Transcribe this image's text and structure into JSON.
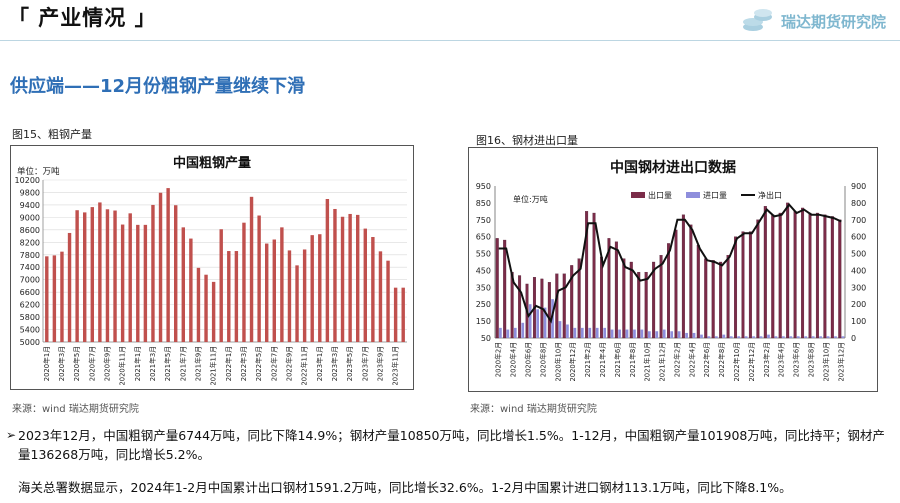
{
  "header": {
    "title": "「 产业情况 」",
    "logo_text": "瑞达期货研究院"
  },
  "subtitle": "供应端——12月份粗钢产量继续下滑",
  "figures": {
    "fig15_label": "图15、粗钢产量",
    "fig16_label": "图16、钢材进出口量",
    "source15": "来源：wind  瑞达期货研究院",
    "source16": "来源：wind  瑞达期货研究院"
  },
  "paragraphs": {
    "p1": "2023年12月，中国粗钢产量6744万吨，同比下降14.9%；钢材产量10850万吨，同比增长1.5%。1-12月，中国粗钢产量101908万吨，同比持平；钢材产量136268万吨，同比增长5.2%。",
    "p2": "海关总署数据显示，2024年1-2月中国累计出口钢材1591.2万吨，同比增长32.6%。1-2月中国累计进口钢材113.1万吨，同比下降8.1%。"
  },
  "colors": {
    "bar_red": "#c0504d",
    "export_bar": "#7b2c49",
    "import_bar": "#8e8edc",
    "net_line": "#111111",
    "subtitle_blue": "#2f6fb6"
  },
  "chart_data": [
    {
      "type": "bar",
      "title": "中国粗钢产量",
      "unit_label": "单位：万吨",
      "ylim": [
        5000,
        10200
      ],
      "yticks": [
        5000,
        5400,
        5800,
        6200,
        6600,
        7000,
        7400,
        7800,
        8200,
        8600,
        9000,
        9400,
        9800,
        10200
      ],
      "categories": [
        "2020年1月",
        "2020年2月",
        "2020年3月",
        "2020年4月",
        "2020年5月",
        "2020年6月",
        "2020年7月",
        "2020年8月",
        "2020年9月",
        "2020年10月",
        "2020年11月",
        "2020年12月",
        "2021年1月",
        "2021年2月",
        "2021年3月",
        "2021年4月",
        "2021年5月",
        "2021年6月",
        "2021年7月",
        "2021年8月",
        "2021年9月",
        "2021年10月",
        "2021年11月",
        "2021年12月",
        "2022年1月",
        "2022年2月",
        "2022年3月",
        "2022年4月",
        "2022年5月",
        "2022年6月",
        "2022年7月",
        "2022年8月",
        "2022年9月",
        "2022年10月",
        "2022年11月",
        "2022年12月",
        "2023年1月",
        "2023年2月",
        "2023年3月",
        "2023年4月",
        "2023年5月",
        "2023年6月",
        "2023年7月",
        "2023年8月",
        "2023年9月",
        "2023年10月",
        "2023年11月",
        "2023年12月"
      ],
      "tick_labels": [
        "2020年1月",
        "2020年3月",
        "2020年5月",
        "2020年7月",
        "2020年9月",
        "2020年11月",
        "2021年1月",
        "2021年3月",
        "2021年5月",
        "2021年7月",
        "2021年9月",
        "2021年11月",
        "2022年1月",
        "2022年3月",
        "2022年5月",
        "2022年7月",
        "2022年9月",
        "2022年11月",
        "2023年1月",
        "2023年3月",
        "2023年5月",
        "2023年7月",
        "2023年9月",
        "2023年11月"
      ],
      "values": [
        7750,
        7780,
        7900,
        8500,
        9230,
        9160,
        9330,
        9480,
        9260,
        9220,
        8770,
        9130,
        8760,
        8760,
        9400,
        9790,
        9940,
        9390,
        8680,
        8320,
        7380,
        7160,
        6930,
        8620,
        7920,
        7920,
        8830,
        9660,
        9060,
        8160,
        8290,
        8680,
        7940,
        7460,
        7970,
        8430,
        8460,
        9590,
        9270,
        9020,
        9110,
        9080,
        8640,
        8370,
        7910,
        7610,
        6744,
        6744
      ]
    },
    {
      "type": "bar+line",
      "title": "中国钢材进出口数据",
      "unit_label": "单位:万吨",
      "left_ylim": [
        50,
        950
      ],
      "left_yticks": [
        50,
        150,
        250,
        350,
        450,
        550,
        650,
        750,
        850,
        950
      ],
      "right_ylim": [
        0,
        900
      ],
      "right_yticks": [
        0,
        100,
        200,
        300,
        400,
        500,
        600,
        700,
        800,
        900
      ],
      "legend": [
        "出口量",
        "进口量",
        "净出口"
      ],
      "categories": [
        "2020年2月",
        "2020年3月",
        "2020年4月",
        "2020年5月",
        "2020年6月",
        "2020年7月",
        "2020年8月",
        "2020年9月",
        "2020年10月",
        "2020年11月",
        "2020年12月",
        "2021年1月",
        "2021年2月",
        "2021年3月",
        "2021年4月",
        "2021年5月",
        "2021年6月",
        "2021年7月",
        "2021年8月",
        "2021年9月",
        "2021年10月",
        "2021年11月",
        "2021年12月",
        "2022年1月",
        "2022年2月",
        "2022年3月",
        "2022年4月",
        "2022年5月",
        "2022年6月",
        "2022年7月",
        "2022年8月",
        "2022年9月",
        "2022年10月",
        "2022年11月",
        "2022年12月",
        "2023年1月",
        "2023年2月",
        "2023年3月",
        "2023年4月",
        "2023年5月",
        "2023年6月",
        "2023年7月",
        "2023年8月",
        "2023年9月",
        "2023年10月",
        "2023年11月",
        "2023年12月"
      ],
      "tick_labels": [
        "2020年2月",
        "2020年4月",
        "2020年6月",
        "2020年8月",
        "2020年10月",
        "2020年12月",
        "2021年2月",
        "2021年4月",
        "2021年6月",
        "2021年8月",
        "2021年10月",
        "2021年12月",
        "2022年2月",
        "2022年4月",
        "2022年6月",
        "2022年8月",
        "2022年10月",
        "2022年12月",
        "2023年2月",
        "2023年4月",
        "2023年6月",
        "2023年8月",
        "2023年10月",
        "2023年12月"
      ],
      "series": [
        {
          "name": "出口量",
          "axis": "left",
          "values": [
            640,
            630,
            440,
            420,
            370,
            410,
            400,
            380,
            430,
            430,
            480,
            520,
            800,
            790,
            530,
            640,
            620,
            520,
            500,
            440,
            440,
            500,
            540,
            610,
            690,
            780,
            720,
            600,
            520,
            510,
            500,
            540,
            650,
            680,
            680,
            750,
            830,
            780,
            790,
            850,
            800,
            820,
            790,
            790,
            780,
            770,
            750
          ]
        },
        {
          "name": "进口量",
          "axis": "left",
          "values": [
            110,
            100,
            110,
            140,
            250,
            220,
            230,
            280,
            150,
            130,
            110,
            110,
            110,
            110,
            110,
            100,
            100,
            100,
            100,
            100,
            90,
            90,
            100,
            90,
            90,
            80,
            80,
            70,
            60,
            60,
            70,
            60,
            60,
            60,
            60,
            60,
            70,
            60,
            60,
            60,
            60,
            60,
            60,
            60,
            60,
            60,
            60
          ]
        },
        {
          "name": "净出口",
          "axis": "right",
          "values": [
            530,
            530,
            330,
            270,
            130,
            190,
            170,
            100,
            280,
            300,
            370,
            410,
            680,
            680,
            430,
            540,
            520,
            420,
            400,
            340,
            350,
            410,
            440,
            520,
            700,
            700,
            640,
            530,
            460,
            450,
            430,
            480,
            590,
            620,
            620,
            690,
            760,
            720,
            730,
            790,
            740,
            760,
            730,
            730,
            720,
            710,
            690
          ]
        }
      ]
    }
  ]
}
